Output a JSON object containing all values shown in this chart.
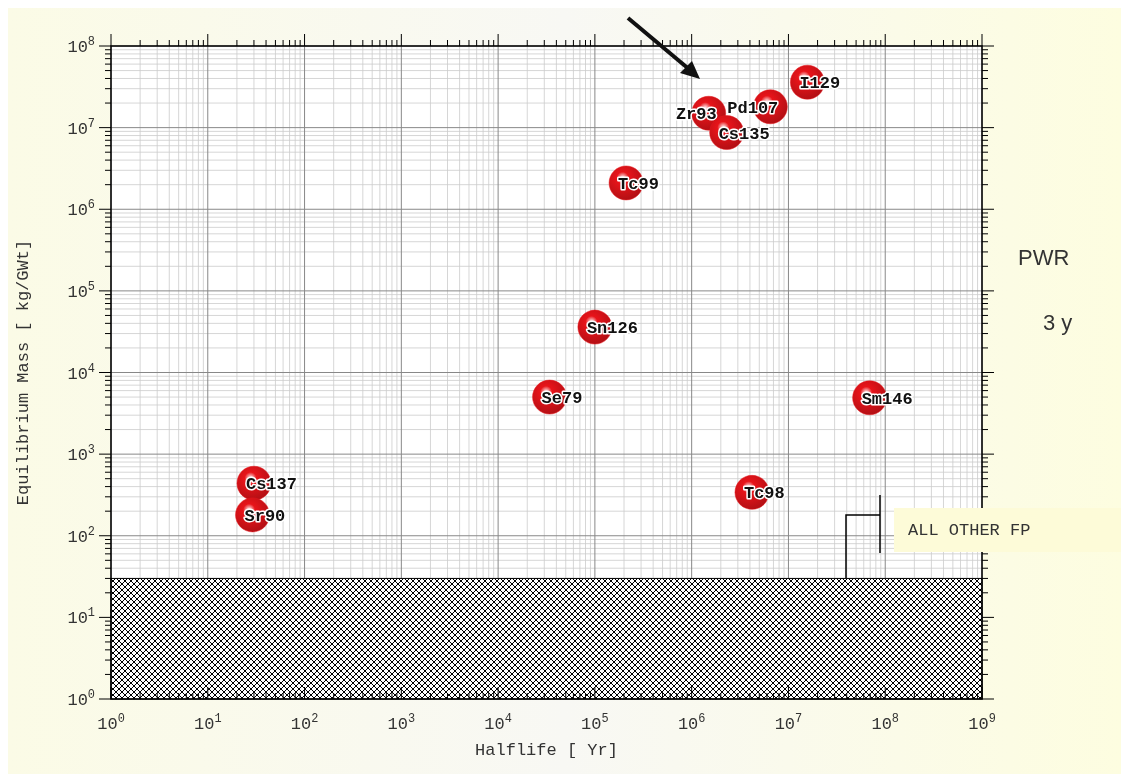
{
  "chart_data": {
    "type": "scatter",
    "xlabel": "Halflife [ Yr]",
    "ylabel": "Equilibrium Mass [ kg/GWt]",
    "log": "xy",
    "grid": true,
    "marker": "circle",
    "xlim": [
      1,
      1000000000
    ],
    "ylim": [
      1,
      100000000
    ],
    "xticks": [
      {
        "value": 1,
        "label": "10$^{0}$"
      },
      {
        "value": 10,
        "label": "10$^{1}$"
      },
      {
        "value": 100,
        "label": "10$^{2}$"
      },
      {
        "value": 1000,
        "label": "10$^{3}$"
      },
      {
        "value": 10000,
        "label": "10$^{4}$"
      },
      {
        "value": 100000,
        "label": "10$^{5}$"
      },
      {
        "value": 1000000,
        "label": "10$^{6}$"
      },
      {
        "value": 10000000,
        "label": "10$^{7}$"
      },
      {
        "value": 100000000,
        "label": "10$^{8}$"
      },
      {
        "value": 1000000000,
        "label": "10$^{9}$"
      }
    ],
    "yticks": [
      {
        "value": 1,
        "label": "10$^{0}$"
      },
      {
        "value": 10,
        "label": "10$^{1}$"
      },
      {
        "value": 100,
        "label": "10$^{2}$"
      },
      {
        "value": 1000,
        "label": "10$^{3}$"
      },
      {
        "value": 10000,
        "label": "10$^{4}$"
      },
      {
        "value": 100000,
        "label": "10$^{5}$"
      },
      {
        "value": 1000000,
        "label": "10$^{6}$"
      },
      {
        "value": 10000000,
        "label": "10$^{7}$"
      },
      {
        "value": 100000000,
        "label": "10$^{8}$"
      }
    ],
    "series": [
      {
        "name": "I129",
        "color": "#e8141a",
        "x": [
          15700000
        ],
        "values": [
          36000000
        ]
      },
      {
        "name": "Zr93",
        "color": "#e8141a",
        "x": [
          1500000
        ],
        "values": [
          15000000
        ]
      },
      {
        "name": "Pd107",
        "color": "#e8141a",
        "x": [
          6500000
        ],
        "values": [
          18000000
        ]
      },
      {
        "name": "Cs135",
        "color": "#e8141a",
        "x": [
          2300000
        ],
        "values": [
          8700000
        ]
      },
      {
        "name": "Tc99",
        "color": "#e8141a",
        "x": [
          210000
        ],
        "values": [
          2100000
        ]
      },
      {
        "name": "Sn126",
        "color": "#e8141a",
        "x": [
          100000
        ],
        "values": [
          36000
        ]
      },
      {
        "name": "Se79",
        "color": "#e8141a",
        "x": [
          34000
        ],
        "values": [
          5000
        ]
      },
      {
        "name": "Sm146",
        "color": "#e8141a",
        "x": [
          69000000
        ],
        "values": [
          4900
        ]
      },
      {
        "name": "Cs137",
        "color": "#e8141a",
        "x": [
          30
        ],
        "values": [
          440
        ]
      },
      {
        "name": "Tc98",
        "color": "#e8141a",
        "x": [
          4200000
        ],
        "values": [
          340
        ]
      },
      {
        "name": "Sr90",
        "color": "#e8141a",
        "x": [
          29
        ],
        "values": [
          180
        ]
      }
    ],
    "bands": [
      {
        "axis": "y",
        "from": 1,
        "to": 30,
        "color": "#000000"
      }
    ],
    "annotations": [
      "ALL OTHER FP",
      "PWR",
      "3 y"
    ]
  }
}
